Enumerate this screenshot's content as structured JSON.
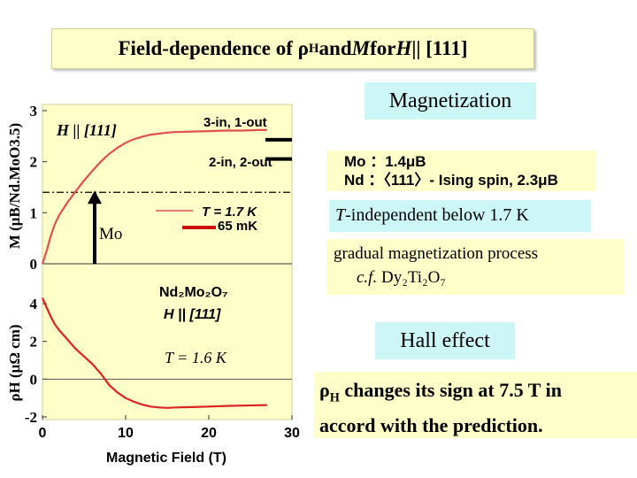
{
  "slide": {
    "title_prefix": "Field-dependence of ρ",
    "title_sub": "H",
    "title_mid": " and ",
    "title_M": "M",
    "title_for": " for ",
    "title_H": "H",
    "title_suffix": " || [111]",
    "magnetization_heading": "Magnetization",
    "mo_line": "Mo ：1.4μB",
    "nd_line": "Nd ：〈111〉- Ising spin,  2.3μB",
    "t_independent": "-independent below 1.7 K",
    "t_letter": "T",
    "gradual_line": "gradual magnetization process",
    "cf_text": "c.f.",
    "dy_formula": "Dy₂Ti₂O₇",
    "hall_heading": "Hall effect",
    "hall_rho": "ρ",
    "hall_rho_sub": "H",
    "hall_line": " changes its sign at 7.5 T in",
    "hall_line2": "accord with the prediction."
  },
  "chart_data": [
    {
      "type": "line",
      "panel": "magnetization",
      "xlabel": "Magnetic Field (T)",
      "ylabel": "M (μB/Nd.MoO3.5)",
      "xlim": [
        0,
        30
      ],
      "ylim": [
        0,
        3
      ],
      "x_ticks": [
        "0",
        "10",
        "20",
        "30"
      ],
      "y_ticks": [
        "0",
        "1",
        "2",
        "3"
      ],
      "annotations": {
        "direction": "H || [111]",
        "three_in_one_out": "3-in, 1-out",
        "two_in_two_out": "2-in, 2-out",
        "mo_arrow": "Mo",
        "legend_17k": "T = 1.7 K",
        "legend_65mk": "65 mK"
      },
      "reference_lines": {
        "dashdot_y": 1.4,
        "three_in_one_out_y": 2.5,
        "two_in_two_out_y": 2.0
      },
      "mo_arrow_y": [
        0,
        1.4
      ],
      "series": [
        {
          "name": "T = 1.7 K",
          "color": "#e05050",
          "x": [
            0,
            0.5,
            1,
            1.5,
            2,
            3,
            4,
            5,
            6,
            7,
            8,
            9,
            10,
            11,
            12,
            13,
            14,
            15,
            16,
            18,
            20,
            22,
            24,
            26,
            27
          ],
          "y": [
            0,
            0.25,
            0.55,
            0.78,
            0.95,
            1.2,
            1.42,
            1.63,
            1.82,
            2.0,
            2.15,
            2.27,
            2.37,
            2.44,
            2.49,
            2.53,
            2.55,
            2.57,
            2.58,
            2.59,
            2.6,
            2.61,
            2.61,
            2.62,
            2.62
          ]
        },
        {
          "name": "65 mK",
          "color": "#cc1111",
          "x": [],
          "y": []
        }
      ]
    },
    {
      "type": "line",
      "panel": "hall",
      "xlabel": "Magnetic Field (T)",
      "ylabel": "ρH (μΩ cm)",
      "xlim": [
        0,
        30
      ],
      "ylim": [
        -2,
        4
      ],
      "x_ticks": [
        "0",
        "10",
        "20",
        "30"
      ],
      "y_ticks": [
        "-2",
        "0",
        "2",
        "4"
      ],
      "annotations": {
        "compound": "Nd₂Mo₂O₇",
        "direction": "H || [111]",
        "temperature": "T = 1.6 K"
      },
      "series": [
        {
          "name": "T = 1.6 K",
          "color": "#dd2222",
          "x": [
            0,
            0.5,
            1,
            1.5,
            2,
            3,
            4,
            5,
            6,
            7,
            7.5,
            8,
            9,
            10,
            11,
            12,
            13,
            14,
            15,
            16,
            18,
            20,
            22,
            24,
            26,
            27
          ],
          "y": [
            4.3,
            3.8,
            3.3,
            2.9,
            2.6,
            2.1,
            1.6,
            1.2,
            0.8,
            0.3,
            0.0,
            -0.3,
            -0.7,
            -1.0,
            -1.2,
            -1.35,
            -1.45,
            -1.5,
            -1.52,
            -1.5,
            -1.48,
            -1.45,
            -1.42,
            -1.4,
            -1.38,
            -1.37
          ]
        }
      ]
    }
  ]
}
